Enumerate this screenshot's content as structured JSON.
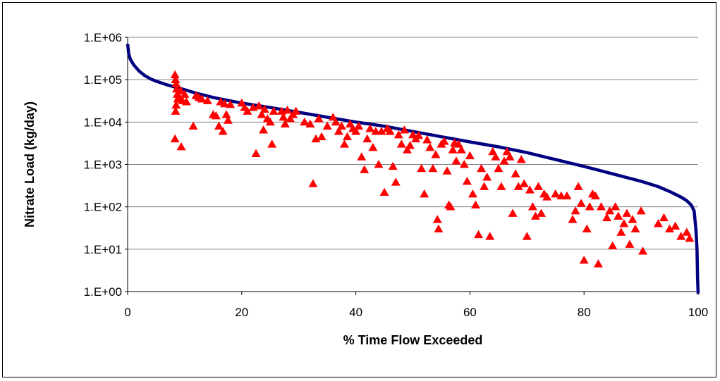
{
  "chart_data": {
    "type": "scatter",
    "title": "",
    "xlabel": "% Time Flow Exceeded",
    "ylabel": "Nitrate Load (kg/day)",
    "x_ticks": [
      "0",
      "20",
      "40",
      "60",
      "80",
      "100"
    ],
    "y_ticks": [
      "1.E+00",
      "1.E+01",
      "1.E+02",
      "1.E+03",
      "1.E+04",
      "1.E+05",
      "1.E+06"
    ],
    "xlim": [
      0,
      100
    ],
    "ylim": [
      1,
      1000000
    ],
    "y_scale": "log",
    "grid": "horizontal",
    "legend": "none",
    "series": [
      {
        "kind": "line",
        "color": "#000080",
        "points": [
          [
            0,
            700000
          ],
          [
            0.2,
            400000
          ],
          [
            0.5,
            300000
          ],
          [
            1,
            230000
          ],
          [
            2,
            160000
          ],
          [
            3,
            125000
          ],
          [
            4,
            105000
          ],
          [
            5,
            92000
          ],
          [
            7,
            75000
          ],
          [
            10,
            58000
          ],
          [
            12,
            48000
          ],
          [
            15,
            38000
          ],
          [
            20,
            28000
          ],
          [
            25,
            22000
          ],
          [
            30,
            17000
          ],
          [
            35,
            13000
          ],
          [
            40,
            10000
          ],
          [
            45,
            8000
          ],
          [
            50,
            6000
          ],
          [
            55,
            4500
          ],
          [
            60,
            3400
          ],
          [
            65,
            2600
          ],
          [
            70,
            1900
          ],
          [
            75,
            1300
          ],
          [
            80,
            900
          ],
          [
            85,
            600
          ],
          [
            90,
            400
          ],
          [
            93,
            300
          ],
          [
            95,
            230
          ],
          [
            97,
            170
          ],
          [
            98,
            140
          ],
          [
            98.8,
            110
          ],
          [
            99.3,
            80
          ],
          [
            99.6,
            30
          ],
          [
            99.8,
            10
          ],
          [
            99.9,
            2
          ],
          [
            100,
            0.8
          ]
        ]
      },
      {
        "kind": "scatter",
        "marker": "triangle",
        "color": "#ff0000",
        "points": [
          [
            8.3,
            130000
          ],
          [
            8.4,
            100000
          ],
          [
            8.5,
            80000
          ],
          [
            8.6,
            60000
          ],
          [
            8.7,
            45000
          ],
          [
            8.8,
            35000
          ],
          [
            8.5,
            25000
          ],
          [
            8.4,
            18000
          ],
          [
            8.3,
            4000
          ],
          [
            9.0,
            40000
          ],
          [
            9.3,
            55000
          ],
          [
            9.6,
            32000
          ],
          [
            10,
            45000
          ],
          [
            10.3,
            30000
          ],
          [
            9.4,
            2600
          ],
          [
            11.5,
            8000
          ],
          [
            12,
            42000
          ],
          [
            12.5,
            38000
          ],
          [
            13,
            35000
          ],
          [
            14,
            32000
          ],
          [
            15,
            15000
          ],
          [
            15.5,
            14000
          ],
          [
            16,
            8000
          ],
          [
            16.3,
            30000
          ],
          [
            16.7,
            6000
          ],
          [
            17,
            27000
          ],
          [
            17.3,
            15000
          ],
          [
            17.6,
            11000
          ],
          [
            18,
            26000
          ],
          [
            20,
            28000
          ],
          [
            20.5,
            22000
          ],
          [
            21,
            18000
          ],
          [
            22,
            22000
          ],
          [
            22.5,
            1800
          ],
          [
            23,
            24000
          ],
          [
            23.5,
            15000
          ],
          [
            23.8,
            6500
          ],
          [
            24,
            20000
          ],
          [
            24.5,
            12000
          ],
          [
            25,
            10000
          ],
          [
            25.3,
            3000
          ],
          [
            25.6,
            18000
          ],
          [
            27,
            18000
          ],
          [
            27.3,
            13000
          ],
          [
            27.6,
            9000
          ],
          [
            28,
            19000
          ],
          [
            28.5,
            12000
          ],
          [
            29,
            15000
          ],
          [
            29.5,
            18000
          ],
          [
            31,
            10000
          ],
          [
            32,
            9000
          ],
          [
            32.5,
            350
          ],
          [
            33,
            4000
          ],
          [
            33.5,
            12000
          ],
          [
            34,
            4500
          ],
          [
            35,
            8000
          ],
          [
            36,
            13000
          ],
          [
            36.5,
            10000
          ],
          [
            37,
            6000
          ],
          [
            37.5,
            8000
          ],
          [
            38,
            3000
          ],
          [
            38.5,
            4500
          ],
          [
            39,
            9000
          ],
          [
            39.5,
            7000
          ],
          [
            40,
            6000
          ],
          [
            40.5,
            8000
          ],
          [
            41,
            1500
          ],
          [
            41.5,
            750
          ],
          [
            42,
            4000
          ],
          [
            42.5,
            7000
          ],
          [
            43,
            2500
          ],
          [
            43.5,
            6000
          ],
          [
            44,
            1000
          ],
          [
            44.5,
            6000
          ],
          [
            45,
            220
          ],
          [
            45.5,
            7000
          ],
          [
            46,
            6000
          ],
          [
            46.5,
            900
          ],
          [
            47,
            380
          ],
          [
            47.5,
            5000
          ],
          [
            48,
            3000
          ],
          [
            48.5,
            6500
          ],
          [
            49,
            2200
          ],
          [
            49.5,
            2800
          ],
          [
            50,
            5000
          ],
          [
            50.5,
            4000
          ],
          [
            51,
            4800
          ],
          [
            51.5,
            800
          ],
          [
            52,
            200
          ],
          [
            52.5,
            3800
          ],
          [
            53,
            2500
          ],
          [
            53.5,
            800
          ],
          [
            54,
            1700
          ],
          [
            54.3,
            50
          ],
          [
            54.5,
            30
          ],
          [
            55,
            3000
          ],
          [
            55.5,
            3500
          ],
          [
            56,
            700
          ],
          [
            56.3,
            110
          ],
          [
            56.6,
            100
          ],
          [
            57,
            2200
          ],
          [
            57.3,
            3200
          ],
          [
            57.6,
            1200
          ],
          [
            58,
            3000
          ],
          [
            58.5,
            2200
          ],
          [
            59,
            1000
          ],
          [
            59.5,
            400
          ],
          [
            60,
            1600
          ],
          [
            60.5,
            200
          ],
          [
            61,
            110
          ],
          [
            61.5,
            22
          ],
          [
            62,
            800
          ],
          [
            62.5,
            300
          ],
          [
            63,
            500
          ],
          [
            63.5,
            20
          ],
          [
            64,
            2000
          ],
          [
            64.5,
            1500
          ],
          [
            65,
            800
          ],
          [
            65.5,
            300
          ],
          [
            66,
            1200
          ],
          [
            66.5,
            2000
          ],
          [
            67,
            1500
          ],
          [
            67.5,
            70
          ],
          [
            68,
            600
          ],
          [
            68.5,
            300
          ],
          [
            69,
            1300
          ],
          [
            69.5,
            350
          ],
          [
            70,
            20
          ],
          [
            70.5,
            250
          ],
          [
            71,
            100
          ],
          [
            71.5,
            60
          ],
          [
            72,
            300
          ],
          [
            72.5,
            70
          ],
          [
            73,
            200
          ],
          [
            73.5,
            170
          ],
          [
            75,
            200
          ],
          [
            76,
            180
          ],
          [
            77,
            180
          ],
          [
            78,
            50
          ],
          [
            78.5,
            80
          ],
          [
            79,
            300
          ],
          [
            79.5,
            120
          ],
          [
            80,
            5.5
          ],
          [
            80.5,
            30
          ],
          [
            81,
            100
          ],
          [
            81.5,
            200
          ],
          [
            82,
            180
          ],
          [
            82.5,
            4.5
          ],
          [
            83,
            100
          ],
          [
            84,
            55
          ],
          [
            84.5,
            80
          ],
          [
            85,
            12
          ],
          [
            85.5,
            100
          ],
          [
            86,
            60
          ],
          [
            86.5,
            25
          ],
          [
            87,
            40
          ],
          [
            87.5,
            70
          ],
          [
            88,
            13
          ],
          [
            88.5,
            50
          ],
          [
            89,
            30
          ],
          [
            90,
            80
          ],
          [
            90.3,
            9
          ],
          [
            93,
            40
          ],
          [
            94,
            55
          ],
          [
            95,
            30
          ],
          [
            96,
            35
          ],
          [
            97,
            20
          ],
          [
            98,
            25
          ],
          [
            98.5,
            18
          ]
        ]
      }
    ]
  }
}
